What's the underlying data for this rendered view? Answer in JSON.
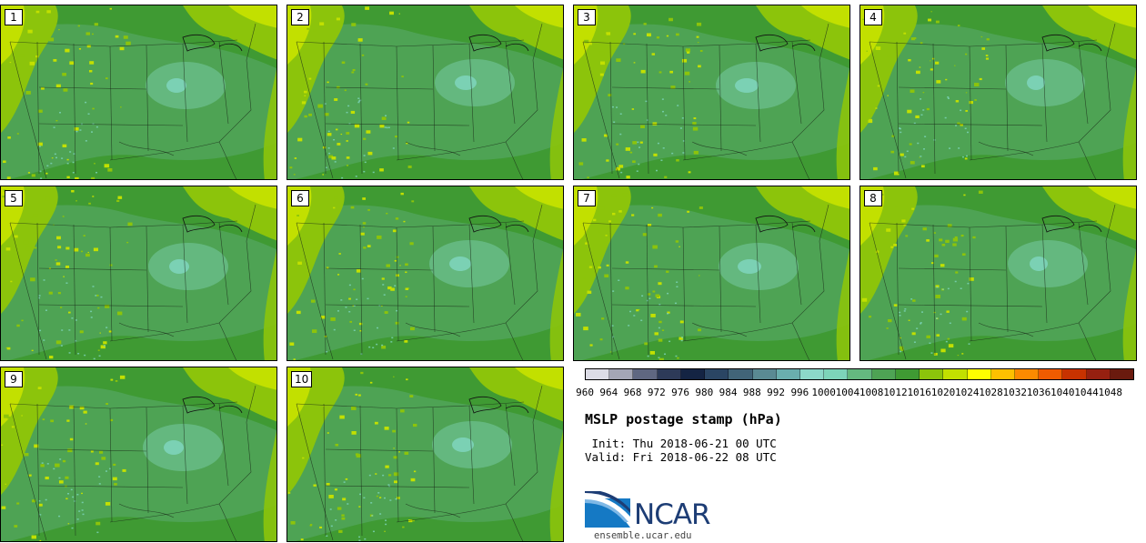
{
  "panels": [
    {
      "number": "1"
    },
    {
      "number": "2"
    },
    {
      "number": "3"
    },
    {
      "number": "4"
    },
    {
      "number": "5"
    },
    {
      "number": "6"
    },
    {
      "number": "7"
    },
    {
      "number": "8"
    },
    {
      "number": "9"
    },
    {
      "number": "10"
    }
  ],
  "colorbar": {
    "labels": [
      "960",
      "964",
      "968",
      "972",
      "976",
      "980",
      "984",
      "988",
      "992",
      "996",
      "1000",
      "1004",
      "1008",
      "1012",
      "1016",
      "1020",
      "1024",
      "1028",
      "1032",
      "1036",
      "1040",
      "1044",
      "1048"
    ],
    "colors": [
      "#dcdce6",
      "#a4a6b6",
      "#5f6781",
      "#2d3a58",
      "#142443",
      "#2a4563",
      "#416478",
      "#5a8a93",
      "#6aaeae",
      "#8cd8c9",
      "#7dd4ba",
      "#64b87f",
      "#4ea354",
      "#3f9a33",
      "#8cc40b",
      "#c2e000",
      "#fdfd00",
      "#fdc000",
      "#fc8a00",
      "#f05b00",
      "#c83200",
      "#962010",
      "#6a1a0e"
    ]
  },
  "title": "MSLP postage stamp (hPa)",
  "init": " Init: Thu 2018-06-21 00 UTC",
  "valid": "Valid: Fri 2018-06-22 08 UTC",
  "logo": {
    "text": "NCAR"
  },
  "url": "ensemble.ucar.edu"
}
